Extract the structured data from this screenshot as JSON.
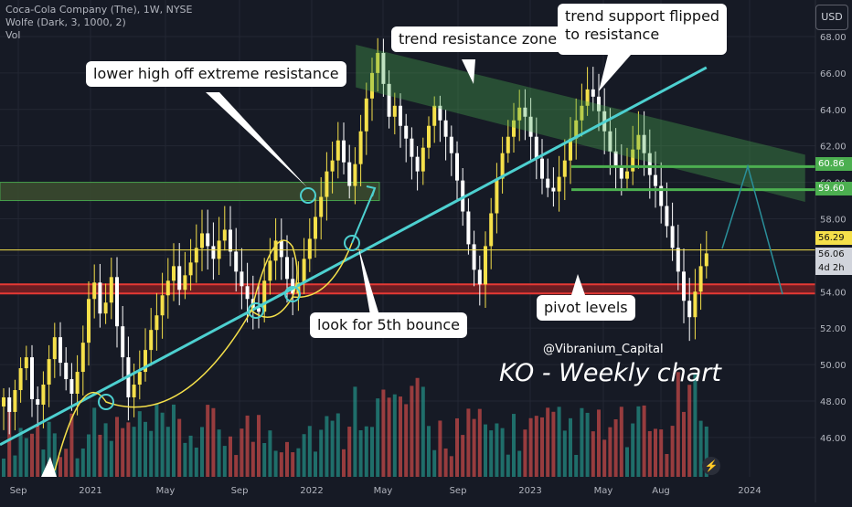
{
  "header": {
    "symbol_line": "Coca-Cola Company (The), 1W, NYSE",
    "indicator_line": "Wolfe (Dark, 3, 1000, 2)",
    "volume_label": "Vol"
  },
  "currency_button": "USD",
  "price_tags": {
    "current": "56.29",
    "last": "56.06",
    "countdown": "4d 2h",
    "level_high": "60.86",
    "level_low": "59.60"
  },
  "callouts": {
    "lower_high": "lower high off extreme resistance",
    "trend_zone": "trend resistance zone",
    "trend_flip_1": "trend support flipped",
    "trend_flip_2": "to resistance",
    "fifth_bounce": "look for 5th bounce",
    "pivot": "pivot levels"
  },
  "watermark": {
    "handle": "@Vibranium_Capital",
    "title": "KO - Weekly chart"
  },
  "colors": {
    "background": "#161a25",
    "up_candle": "#f5e04a",
    "down_candle": "#ffffff",
    "volume_up": "#26a69a",
    "volume_down": "#ef5350",
    "trendline": "#4dd0d0",
    "zone_green": "#4caf50",
    "pivot_red": "#e53935",
    "price_line": "#f5e04a"
  },
  "chart_data": {
    "type": "candlestick",
    "y_axis": {
      "ticks": [
        "68.00",
        "66.00",
        "64.00",
        "62.00",
        "60.00",
        "58.00",
        "56.00",
        "54.00",
        "52.00",
        "50.00",
        "48.00",
        "46.00"
      ],
      "range": [
        45.3,
        68.2
      ]
    },
    "x_axis": {
      "ticks": [
        "Sep",
        "2021",
        "May",
        "Sep",
        "2022",
        "May",
        "Sep",
        "2023",
        "May",
        "Aug",
        "2024"
      ]
    },
    "levels": {
      "current_price": 56.29,
      "last_price": 56.06,
      "resistance_high": 60.86,
      "resistance_low": 59.6,
      "pivot_top": 54.4,
      "pivot_bottom": 53.9,
      "extreme_resistance_top": 60.0,
      "extreme_resistance_bottom": 59.0
    },
    "closes": [
      48.2,
      47.4,
      48.6,
      49.8,
      50.4,
      48.1,
      47.8,
      48.9,
      50.3,
      51.5,
      50.1,
      49.2,
      48.4,
      49.6,
      51.2,
      53.6,
      54.5,
      52.8,
      53.4,
      54.8,
      52.1,
      50.4,
      48.2,
      48.9,
      49.6,
      50.8,
      51.9,
      52.7,
      53.8,
      54.6,
      55.4,
      54.1,
      54.9,
      55.6,
      56.4,
      57.2,
      56.5,
      55.8,
      56.8,
      57.4,
      56.2,
      55.1,
      54.3,
      53.6,
      53.1,
      52.9,
      54.6,
      55.7,
      56.8,
      55.9,
      54.7,
      53.9,
      54.5,
      55.8,
      56.9,
      58.1,
      59.2,
      60.6,
      61.2,
      62.3,
      61.1,
      59.8,
      61.0,
      62.8,
      64.6,
      66.0,
      67.1,
      65.4,
      63.6,
      64.2,
      63.1,
      62.4,
      61.4,
      60.6,
      61.9,
      63.1,
      64.2,
      63.4,
      62.5,
      61.6,
      60.1,
      58.4,
      56.6,
      55.2,
      54.4,
      56.5,
      58.3,
      60.2,
      61.6,
      62.5,
      63.4,
      64.1,
      63.6,
      62.5,
      61.3,
      60.2,
      59.7,
      59.5,
      60.3,
      61.2,
      62.4,
      63.4,
      64.2,
      65.1,
      64.7,
      63.9,
      62.8,
      61.7,
      60.8,
      60.2,
      60.6,
      61.8,
      62.6,
      61.6,
      60.4,
      59.8,
      58.7,
      57.6,
      56.4,
      55.1,
      53.5,
      52.6,
      54.0,
      55.4,
      56.1
    ],
    "trendline": [
      {
        "x": 0,
        "y": 45.6
      },
      {
        "x": 124,
        "y": 66.3
      }
    ],
    "pivot_zone": [
      53.9,
      54.4
    ]
  }
}
